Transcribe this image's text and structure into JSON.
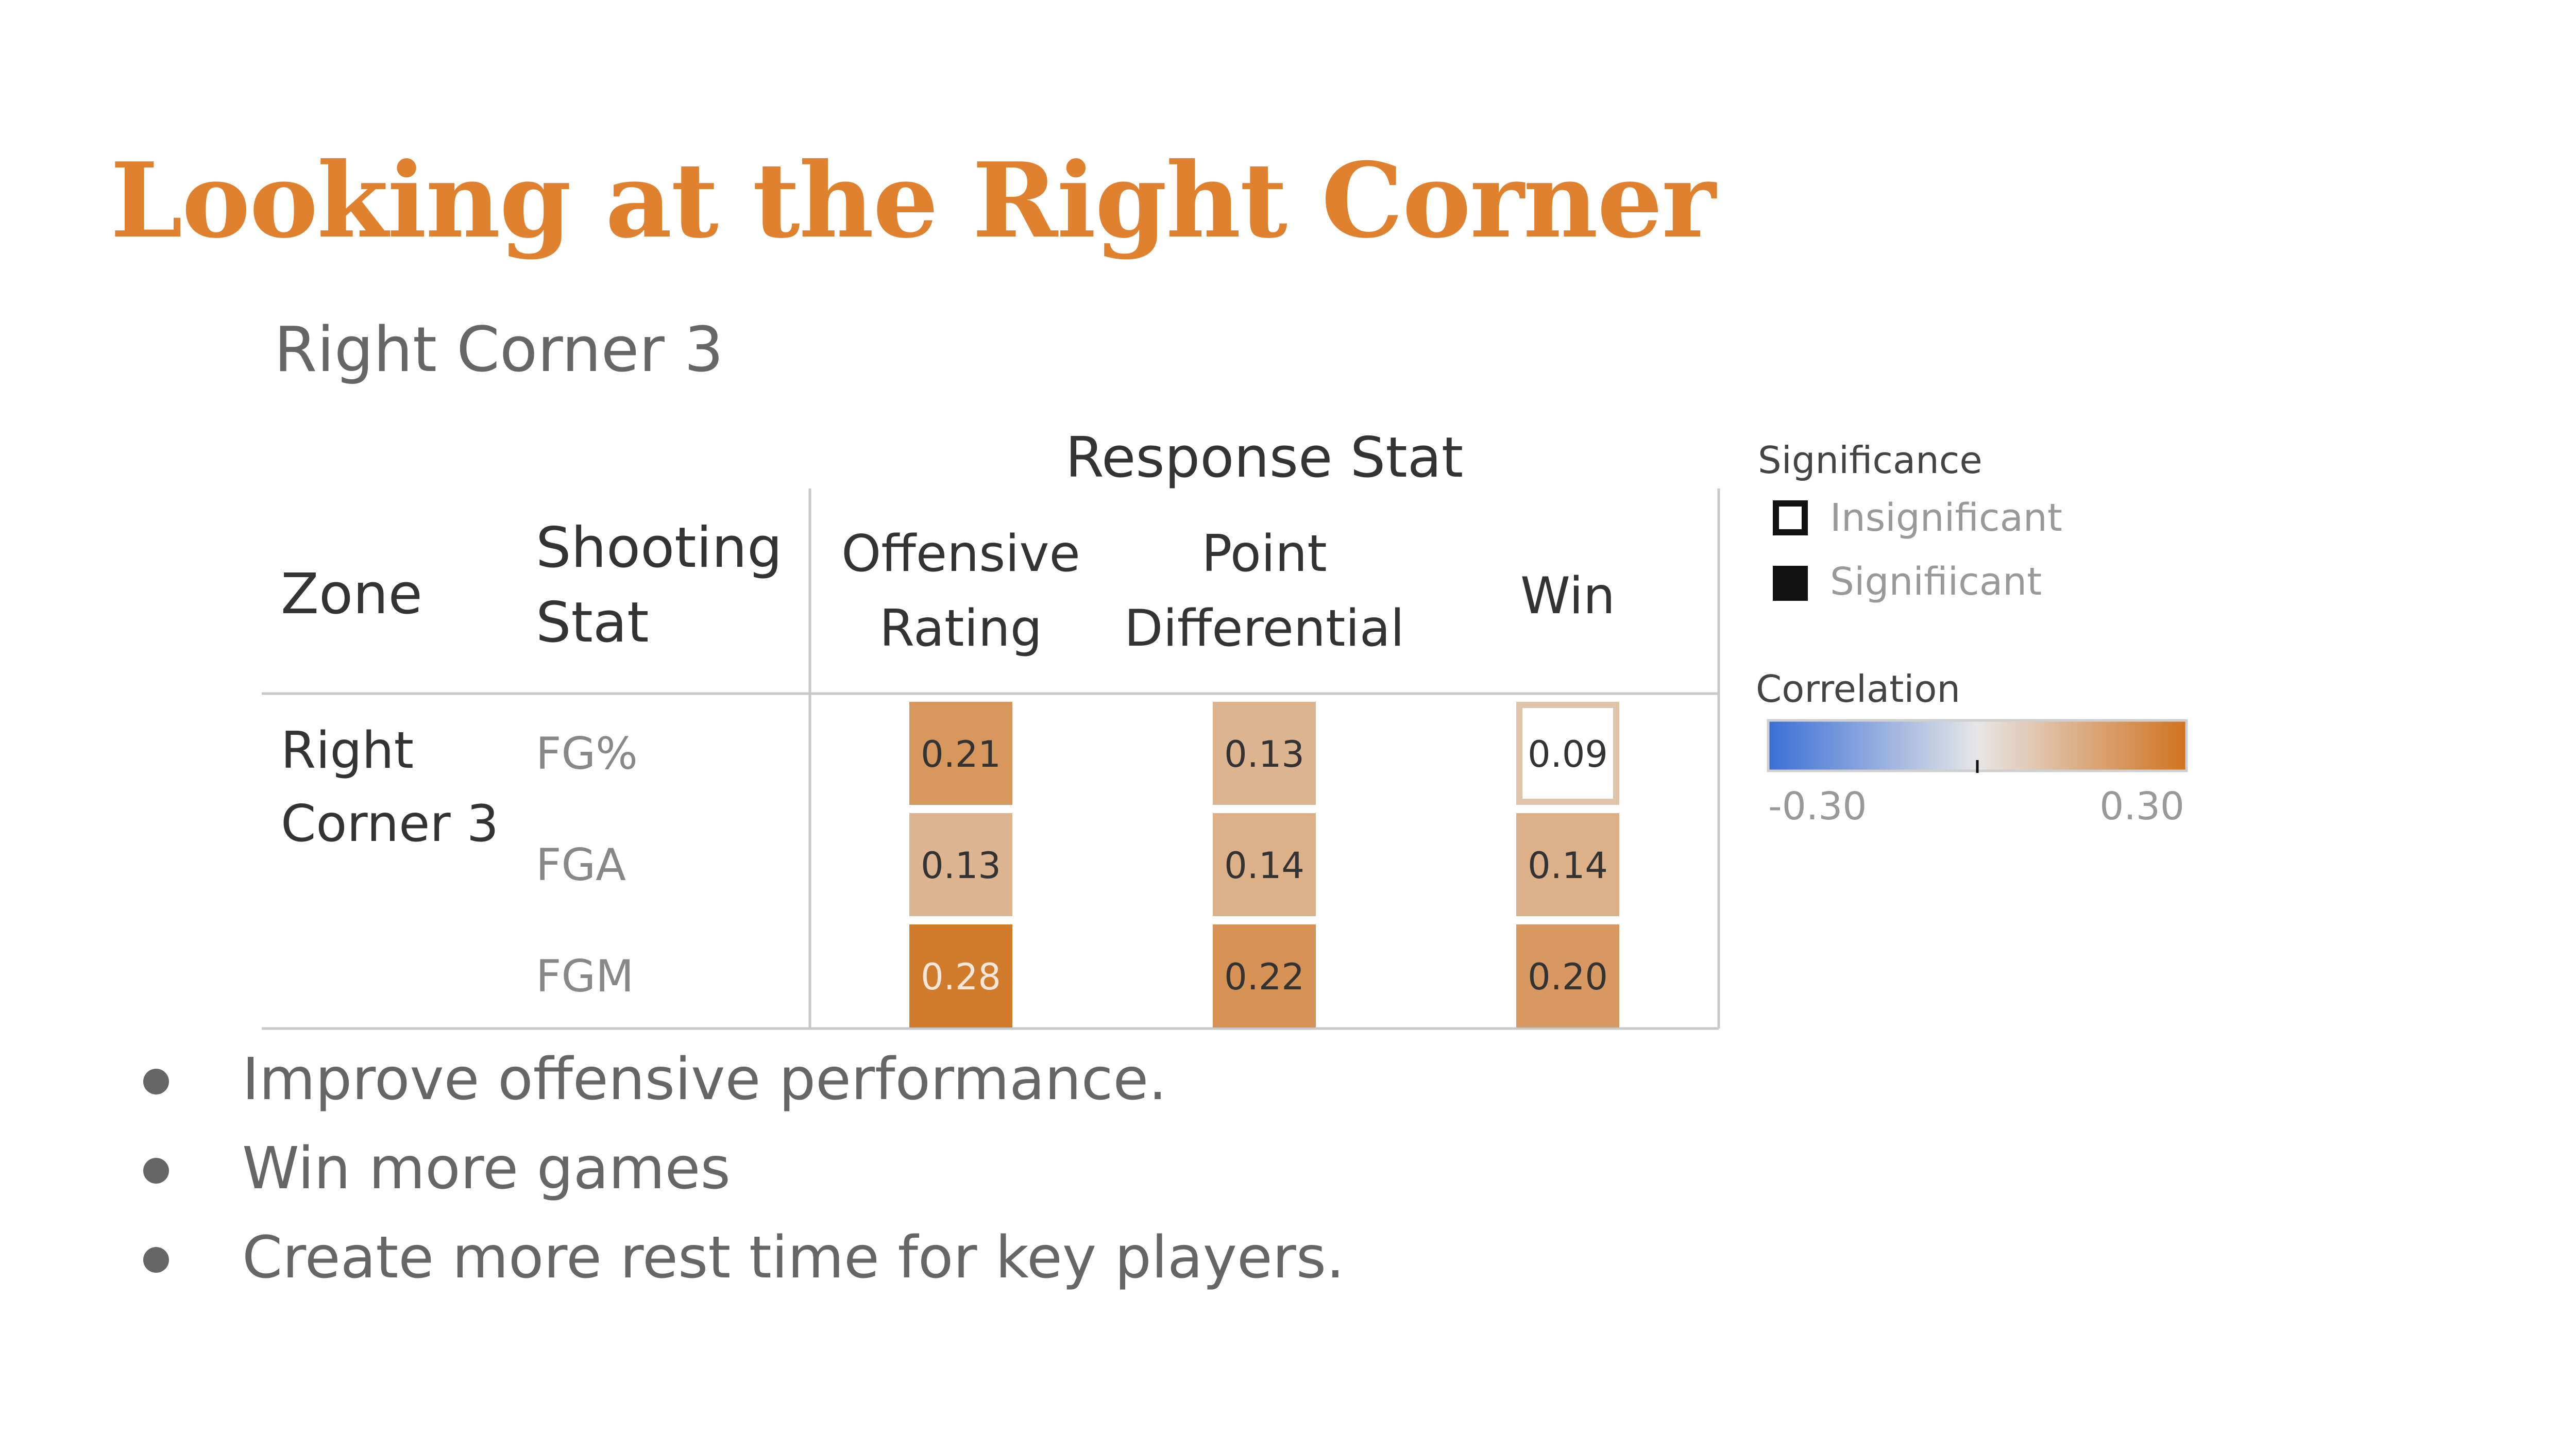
{
  "slide": {
    "title": "Looking at the Right Corner",
    "bullets": [
      "Improve offensive performance.",
      "Win more games",
      "Create more rest time for key players."
    ]
  },
  "chart_data": {
    "type": "heatmap",
    "title": "Right Corner 3",
    "column_group_label": "Response Stat",
    "row_headers": {
      "zone": [
        "Zone"
      ],
      "shooting_stat": [
        "Shooting",
        "Stat"
      ]
    },
    "columns": [
      [
        "Offensive",
        "Rating"
      ],
      [
        "Point",
        "Differential"
      ],
      [
        "Win"
      ]
    ],
    "zone_label": [
      "Right",
      "Corner 3"
    ],
    "rows": [
      "FG%",
      "FGA",
      "FGM"
    ],
    "values": [
      [
        0.21,
        0.13,
        0.09
      ],
      [
        0.13,
        0.14,
        0.14
      ],
      [
        0.28,
        0.22,
        0.2
      ]
    ],
    "value_labels": [
      [
        "0.21",
        "0.13",
        "0.09"
      ],
      [
        "0.13",
        "0.14",
        "0.14"
      ],
      [
        "0.28",
        "0.22",
        "0.20"
      ]
    ],
    "significant": [
      [
        true,
        true,
        false
      ],
      [
        true,
        true,
        true
      ],
      [
        true,
        true,
        true
      ]
    ],
    "color_range": [
      -0.3,
      0.3
    ],
    "color_min_label": "-0.30",
    "color_max_label": "0.30",
    "colors": {
      "negative": "#3b6fd6",
      "neutral": "#e6e6e6",
      "positive": "#d0731f"
    },
    "legend": {
      "position": "right",
      "significance_title": "Significance",
      "significance_items": [
        "Insignificant",
        "Signifiicant"
      ],
      "correlation_title": "Correlation"
    }
  }
}
